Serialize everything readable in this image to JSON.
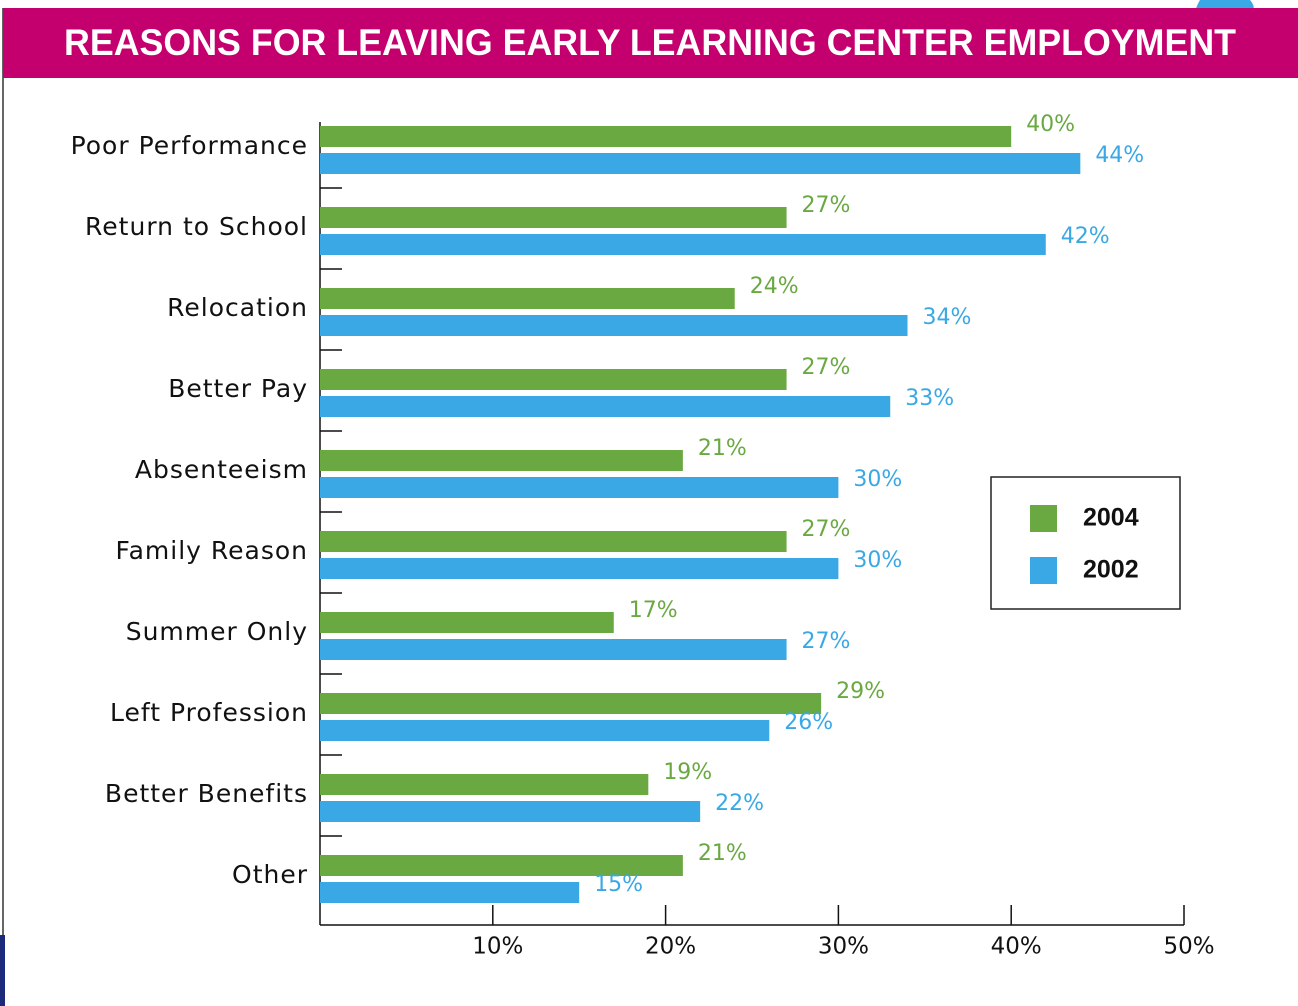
{
  "chart_data": {
    "type": "bar",
    "orientation": "horizontal",
    "title": "REASONS FOR LEAVING EARLY LEARNING CENTER EMPLOYMENT",
    "categories": [
      "Poor Performance",
      "Return to School",
      "Relocation",
      "Better Pay",
      "Absenteeism",
      "Family Reason",
      "Summer Only",
      "Left Profession",
      "Better Benefits",
      "Other"
    ],
    "series": [
      {
        "name": "2004",
        "color": "#6aa842",
        "values": [
          40,
          27,
          24,
          27,
          21,
          27,
          17,
          29,
          19,
          21
        ],
        "value_labels": [
          "40%",
          "27%",
          "24%",
          "27%",
          "21%",
          "27%",
          "17%",
          "29%",
          "19%",
          "21%"
        ]
      },
      {
        "name": "2002",
        "color": "#3aa8e4",
        "values": [
          44,
          42,
          34,
          33,
          30,
          30,
          27,
          26,
          22,
          15
        ],
        "value_labels": [
          "44%",
          "42%",
          "34%",
          "33%",
          "30%",
          "30%",
          "27%",
          "26%",
          "22%",
          "15%"
        ]
      }
    ],
    "xlim": [
      0,
      50
    ],
    "xticks": [
      {
        "value": 10,
        "label": "10%"
      },
      {
        "value": 20,
        "label": "20%"
      },
      {
        "value": 30,
        "label": "30%"
      },
      {
        "value": 40,
        "label": "40%"
      },
      {
        "value": 50,
        "label": "50%"
      }
    ],
    "legend": "right"
  }
}
